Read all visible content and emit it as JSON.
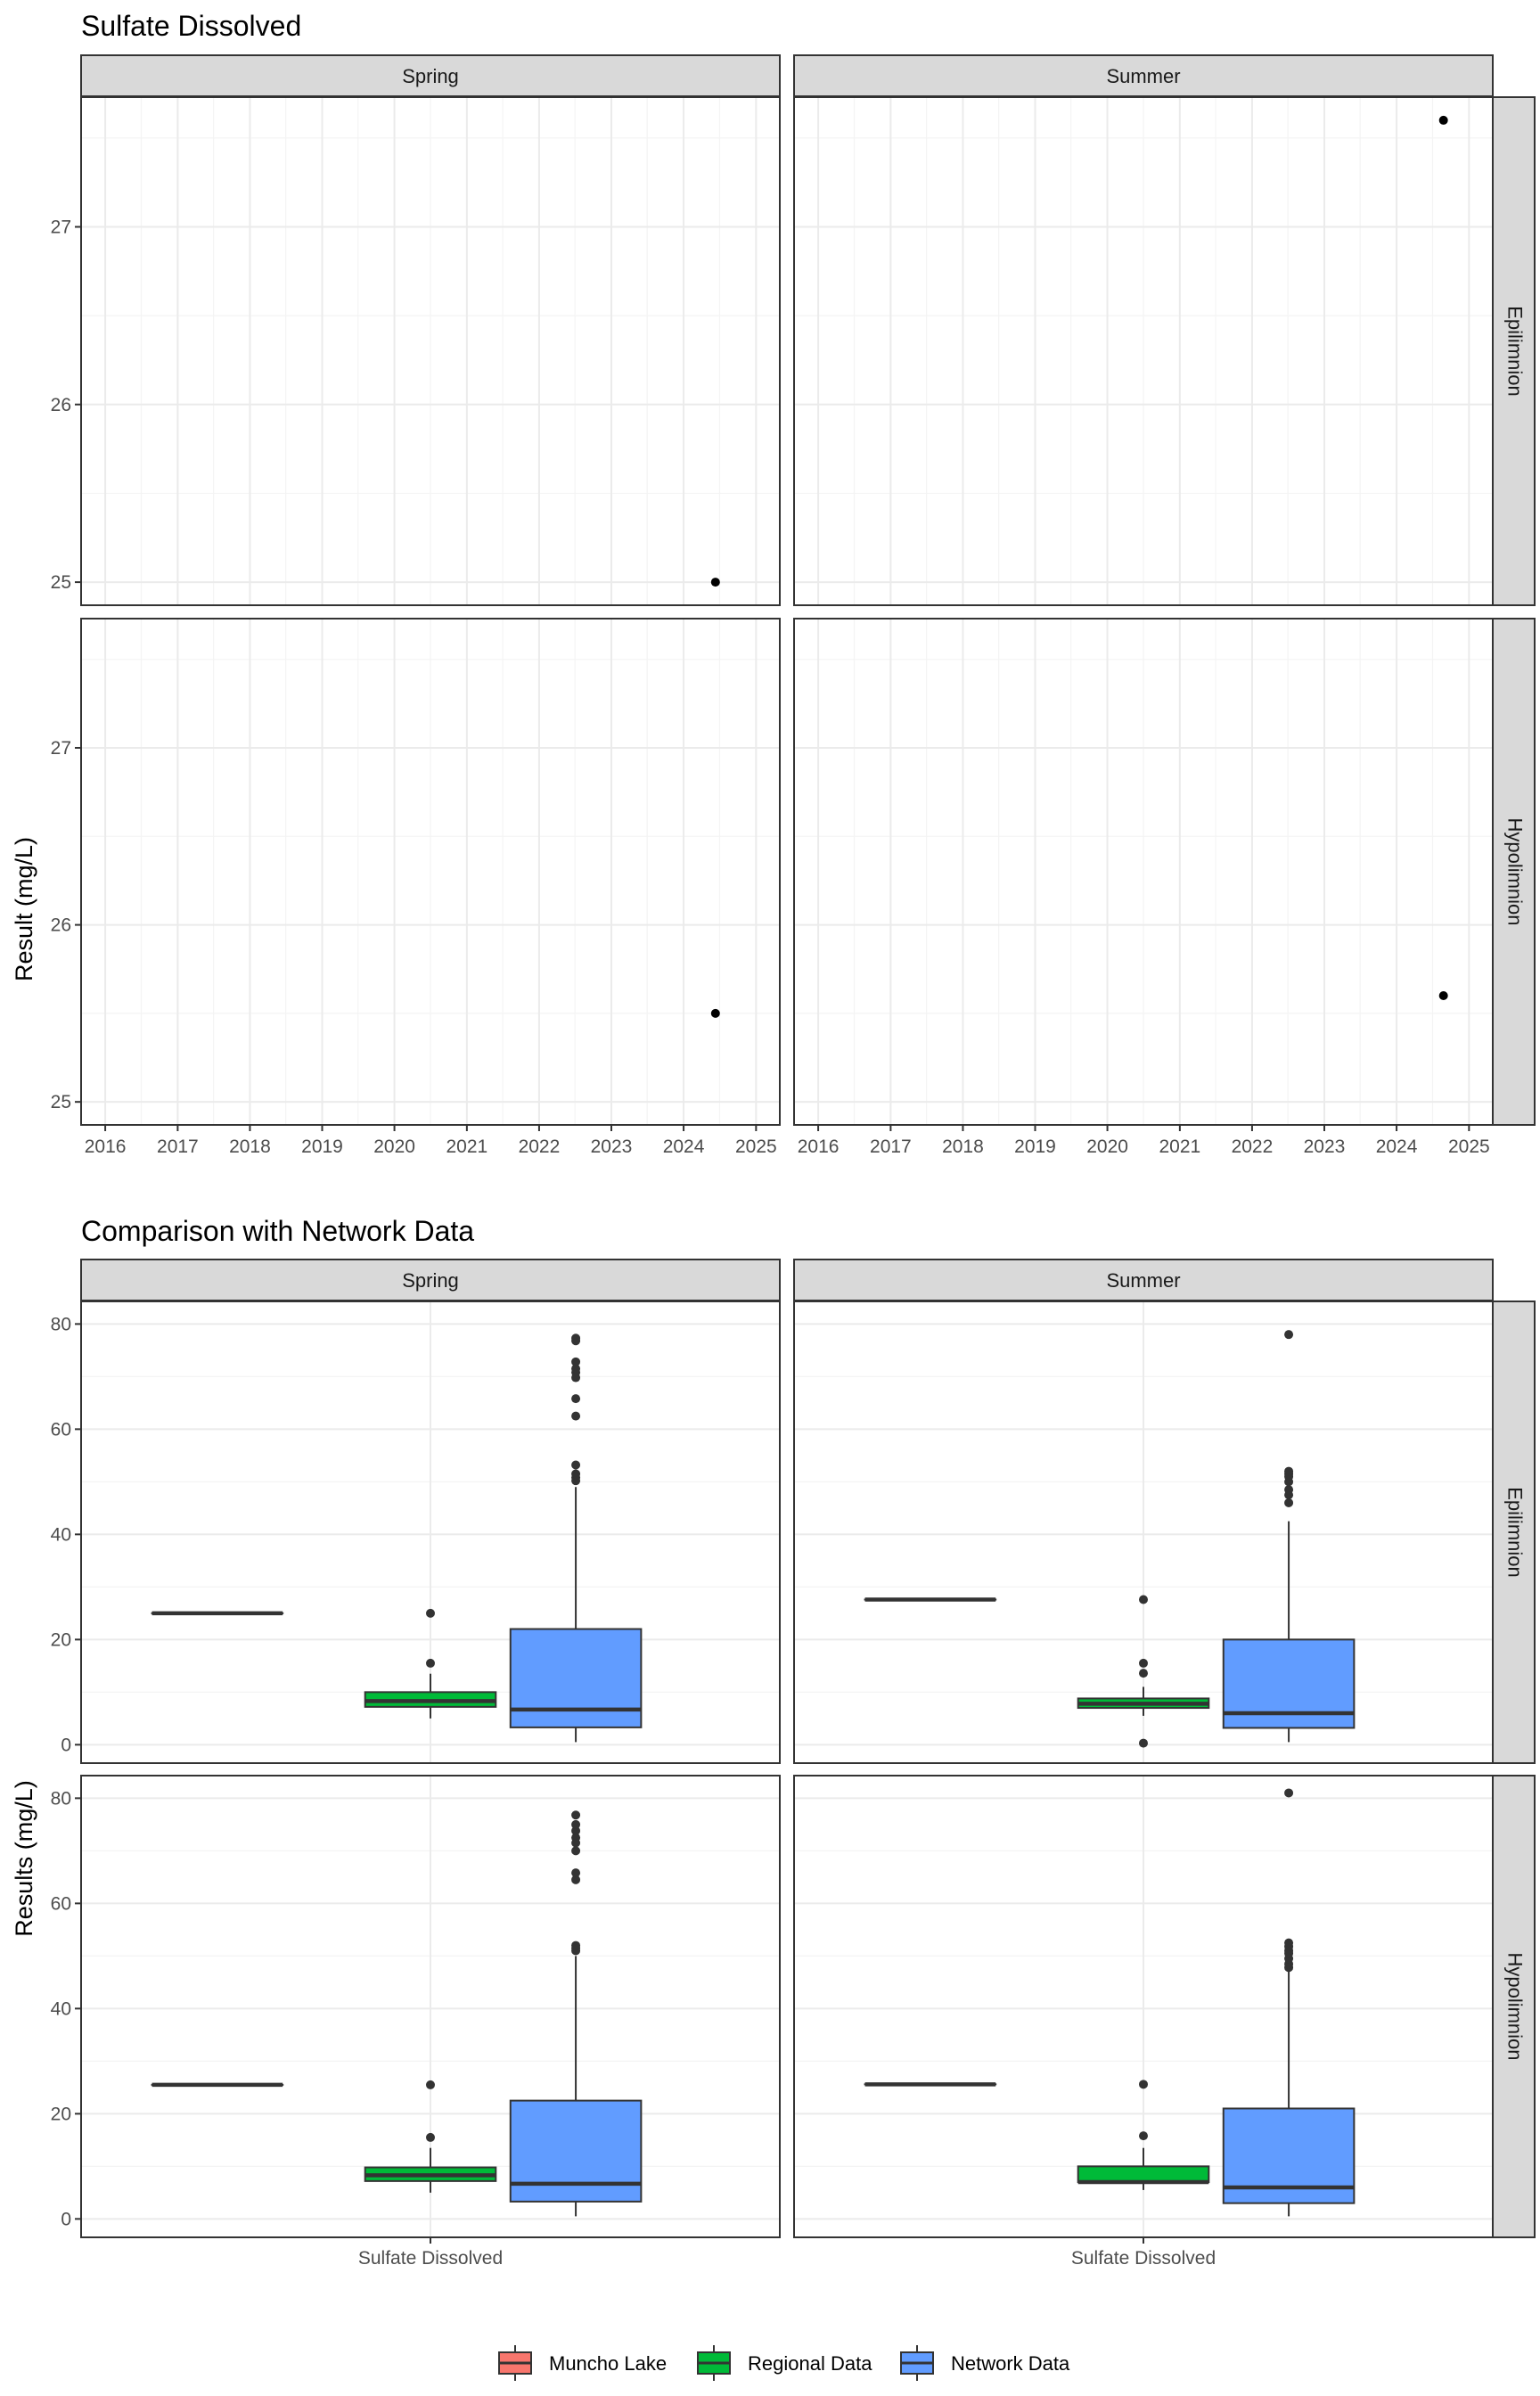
{
  "chart_data": [
    {
      "type": "scatter",
      "title": "Sulfate Dissolved",
      "ylabel": "Result (mg/L)",
      "xlabel": "",
      "facet_columns": [
        "Spring",
        "Summer"
      ],
      "facet_rows": [
        "Epilimnion",
        "Hypolimnion"
      ],
      "x_ticks": [
        "2016",
        "2017",
        "2018",
        "2019",
        "2020",
        "2021",
        "2022",
        "2023",
        "2024",
        "2025"
      ],
      "xlim": [
        "2015-09-01",
        "2025-05-01"
      ],
      "y_ticks": [
        "25",
        "26",
        "27"
      ],
      "ylim": [
        24.87,
        27.73
      ],
      "grid": true,
      "points": [
        {
          "season": "Spring",
          "layer": "Epilimnion",
          "date": "2024-06-10",
          "value": 25.0
        },
        {
          "season": "Summer",
          "layer": "Epilimnion",
          "date": "2024-08-25",
          "value": 27.6
        },
        {
          "season": "Spring",
          "layer": "Hypolimnion",
          "date": "2024-06-10",
          "value": 25.5
        },
        {
          "season": "Summer",
          "layer": "Hypolimnion",
          "date": "2024-08-25",
          "value": 25.6
        }
      ]
    },
    {
      "type": "box",
      "title": "Comparison with Network Data",
      "ylabel": "Results (mg/L)",
      "category": "Sulfate Dissolved",
      "facet_columns": [
        "Spring",
        "Summer"
      ],
      "facet_rows": [
        "Epilimnion",
        "Hypolimnion"
      ],
      "y_ticks": [
        "0",
        "20",
        "40",
        "60",
        "80"
      ],
      "ylim": [
        -3.5,
        84.3
      ],
      "grid": true,
      "legend": {
        "placement": "bottom",
        "entries": [
          {
            "label": "Muncho Lake",
            "color": "#F8766D"
          },
          {
            "label": "Regional Data",
            "color": "#00BA38"
          },
          {
            "label": "Network Data",
            "color": "#619CFF"
          }
        ]
      },
      "panels": [
        {
          "season": "Spring",
          "layer": "Epilimnion",
          "boxes": [
            {
              "series": "Muncho Lake",
              "q1": 25.0,
              "median": 25.0,
              "q3": 25.0,
              "whisker_low": 25.0,
              "whisker_high": 25.0,
              "outliers": []
            },
            {
              "series": "Regional Data",
              "q1": 7.2,
              "median": 8.3,
              "q3": 10.0,
              "whisker_low": 5.0,
              "whisker_high": 13.5,
              "outliers": [
                15.5,
                25.0
              ]
            },
            {
              "series": "Network Data",
              "q1": 3.3,
              "median": 6.7,
              "q3": 22.0,
              "whisker_low": 0.5,
              "whisker_high": 49.0,
              "outliers": [
                50.2,
                50.8,
                51.5,
                53.2,
                62.5,
                65.8,
                69.8,
                70.8,
                71.5,
                72.8,
                76.8,
                77.3
              ]
            }
          ]
        },
        {
          "season": "Summer",
          "layer": "Epilimnion",
          "boxes": [
            {
              "series": "Muncho Lake",
              "q1": 27.6,
              "median": 27.6,
              "q3": 27.6,
              "whisker_low": 27.6,
              "whisker_high": 27.6,
              "outliers": []
            },
            {
              "series": "Regional Data",
              "q1": 7.0,
              "median": 7.8,
              "q3": 8.8,
              "whisker_low": 5.5,
              "whisker_high": 11.0,
              "outliers": [
                0.3,
                13.6,
                15.5,
                27.6
              ]
            },
            {
              "series": "Network Data",
              "q1": 3.2,
              "median": 6.0,
              "q3": 20.0,
              "whisker_low": 0.5,
              "whisker_high": 42.5,
              "outliers": [
                46.0,
                47.5,
                48.5,
                50.0,
                51.0,
                51.5,
                52.0,
                78.0
              ]
            }
          ]
        },
        {
          "season": "Spring",
          "layer": "Hypolimnion",
          "boxes": [
            {
              "series": "Muncho Lake",
              "q1": 25.5,
              "median": 25.5,
              "q3": 25.5,
              "whisker_low": 25.5,
              "whisker_high": 25.5,
              "outliers": []
            },
            {
              "series": "Regional Data",
              "q1": 7.2,
              "median": 8.3,
              "q3": 9.8,
              "whisker_low": 5.0,
              "whisker_high": 13.5,
              "outliers": [
                15.5,
                25.5
              ]
            },
            {
              "series": "Network Data",
              "q1": 3.3,
              "median": 6.7,
              "q3": 22.5,
              "whisker_low": 0.5,
              "whisker_high": 50.0,
              "outliers": [
                51.0,
                51.5,
                52.0,
                64.5,
                65.8,
                70.0,
                71.5,
                72.5,
                73.8,
                75.0,
                76.8
              ]
            }
          ]
        },
        {
          "season": "Summer",
          "layer": "Hypolimnion",
          "boxes": [
            {
              "series": "Muncho Lake",
              "q1": 25.6,
              "median": 25.6,
              "q3": 25.6,
              "whisker_low": 25.6,
              "whisker_high": 25.6,
              "outliers": []
            },
            {
              "series": "Regional Data",
              "q1": 7.0,
              "median": 7.0,
              "q3": 10.0,
              "whisker_low": 5.5,
              "whisker_high": 13.5,
              "outliers": [
                15.8,
                25.6
              ]
            },
            {
              "series": "Network Data",
              "q1": 3.0,
              "median": 6.0,
              "q3": 21.0,
              "whisker_low": 0.5,
              "whisker_high": 47.0,
              "outliers": [
                47.8,
                48.5,
                49.5,
                50.5,
                51.0,
                51.8,
                52.5,
                81.0
              ]
            }
          ]
        }
      ]
    }
  ]
}
